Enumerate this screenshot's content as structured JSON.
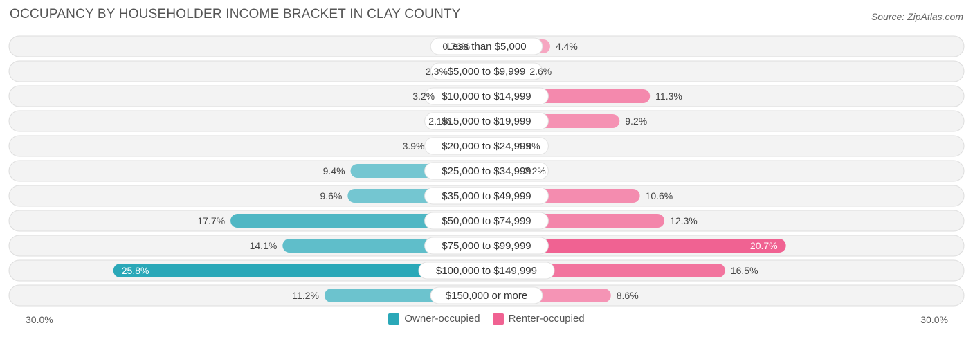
{
  "title": "OCCUPANCY BY HOUSEHOLDER INCOME BRACKET IN CLAY COUNTY",
  "source": "Source: ZipAtlas.com",
  "axis": {
    "left_label": "30.0%",
    "right_label": "30.0%"
  },
  "legend": {
    "owner": {
      "label": "Owner-occupied",
      "color": "#2aa8b8"
    },
    "renter": {
      "label": "Renter-occupied",
      "color": "#f06292"
    }
  },
  "chart_data": {
    "type": "bar",
    "orientation": "horizontal-diverging",
    "xlim": [
      -30,
      30
    ],
    "categories": [
      "Less than $5,000",
      "$5,000 to $9,999",
      "$10,000 to $14,999",
      "$15,000 to $19,999",
      "$20,000 to $24,999",
      "$25,000 to $34,999",
      "$35,000 to $49,999",
      "$50,000 to $74,999",
      "$75,000 to $99,999",
      "$100,000 to $149,999",
      "$150,000 or more"
    ],
    "series": [
      {
        "name": "Owner-occupied",
        "side": "left",
        "values": [
          0.76,
          2.3,
          3.2,
          2.1,
          3.9,
          9.4,
          9.6,
          17.7,
          14.1,
          25.8,
          11.2
        ],
        "labels": [
          "0.76%",
          "2.3%",
          "3.2%",
          "2.1%",
          "3.9%",
          "9.4%",
          "9.6%",
          "17.7%",
          "14.1%",
          "25.8%",
          "11.2%"
        ]
      },
      {
        "name": "Renter-occupied",
        "side": "right",
        "values": [
          4.4,
          2.6,
          11.3,
          9.2,
          1.8,
          2.2,
          10.6,
          12.3,
          20.7,
          16.5,
          8.6
        ],
        "labels": [
          "4.4%",
          "2.6%",
          "11.3%",
          "9.2%",
          "1.8%",
          "2.2%",
          "10.6%",
          "12.3%",
          "20.7%",
          "16.5%",
          "8.6%"
        ]
      }
    ]
  }
}
